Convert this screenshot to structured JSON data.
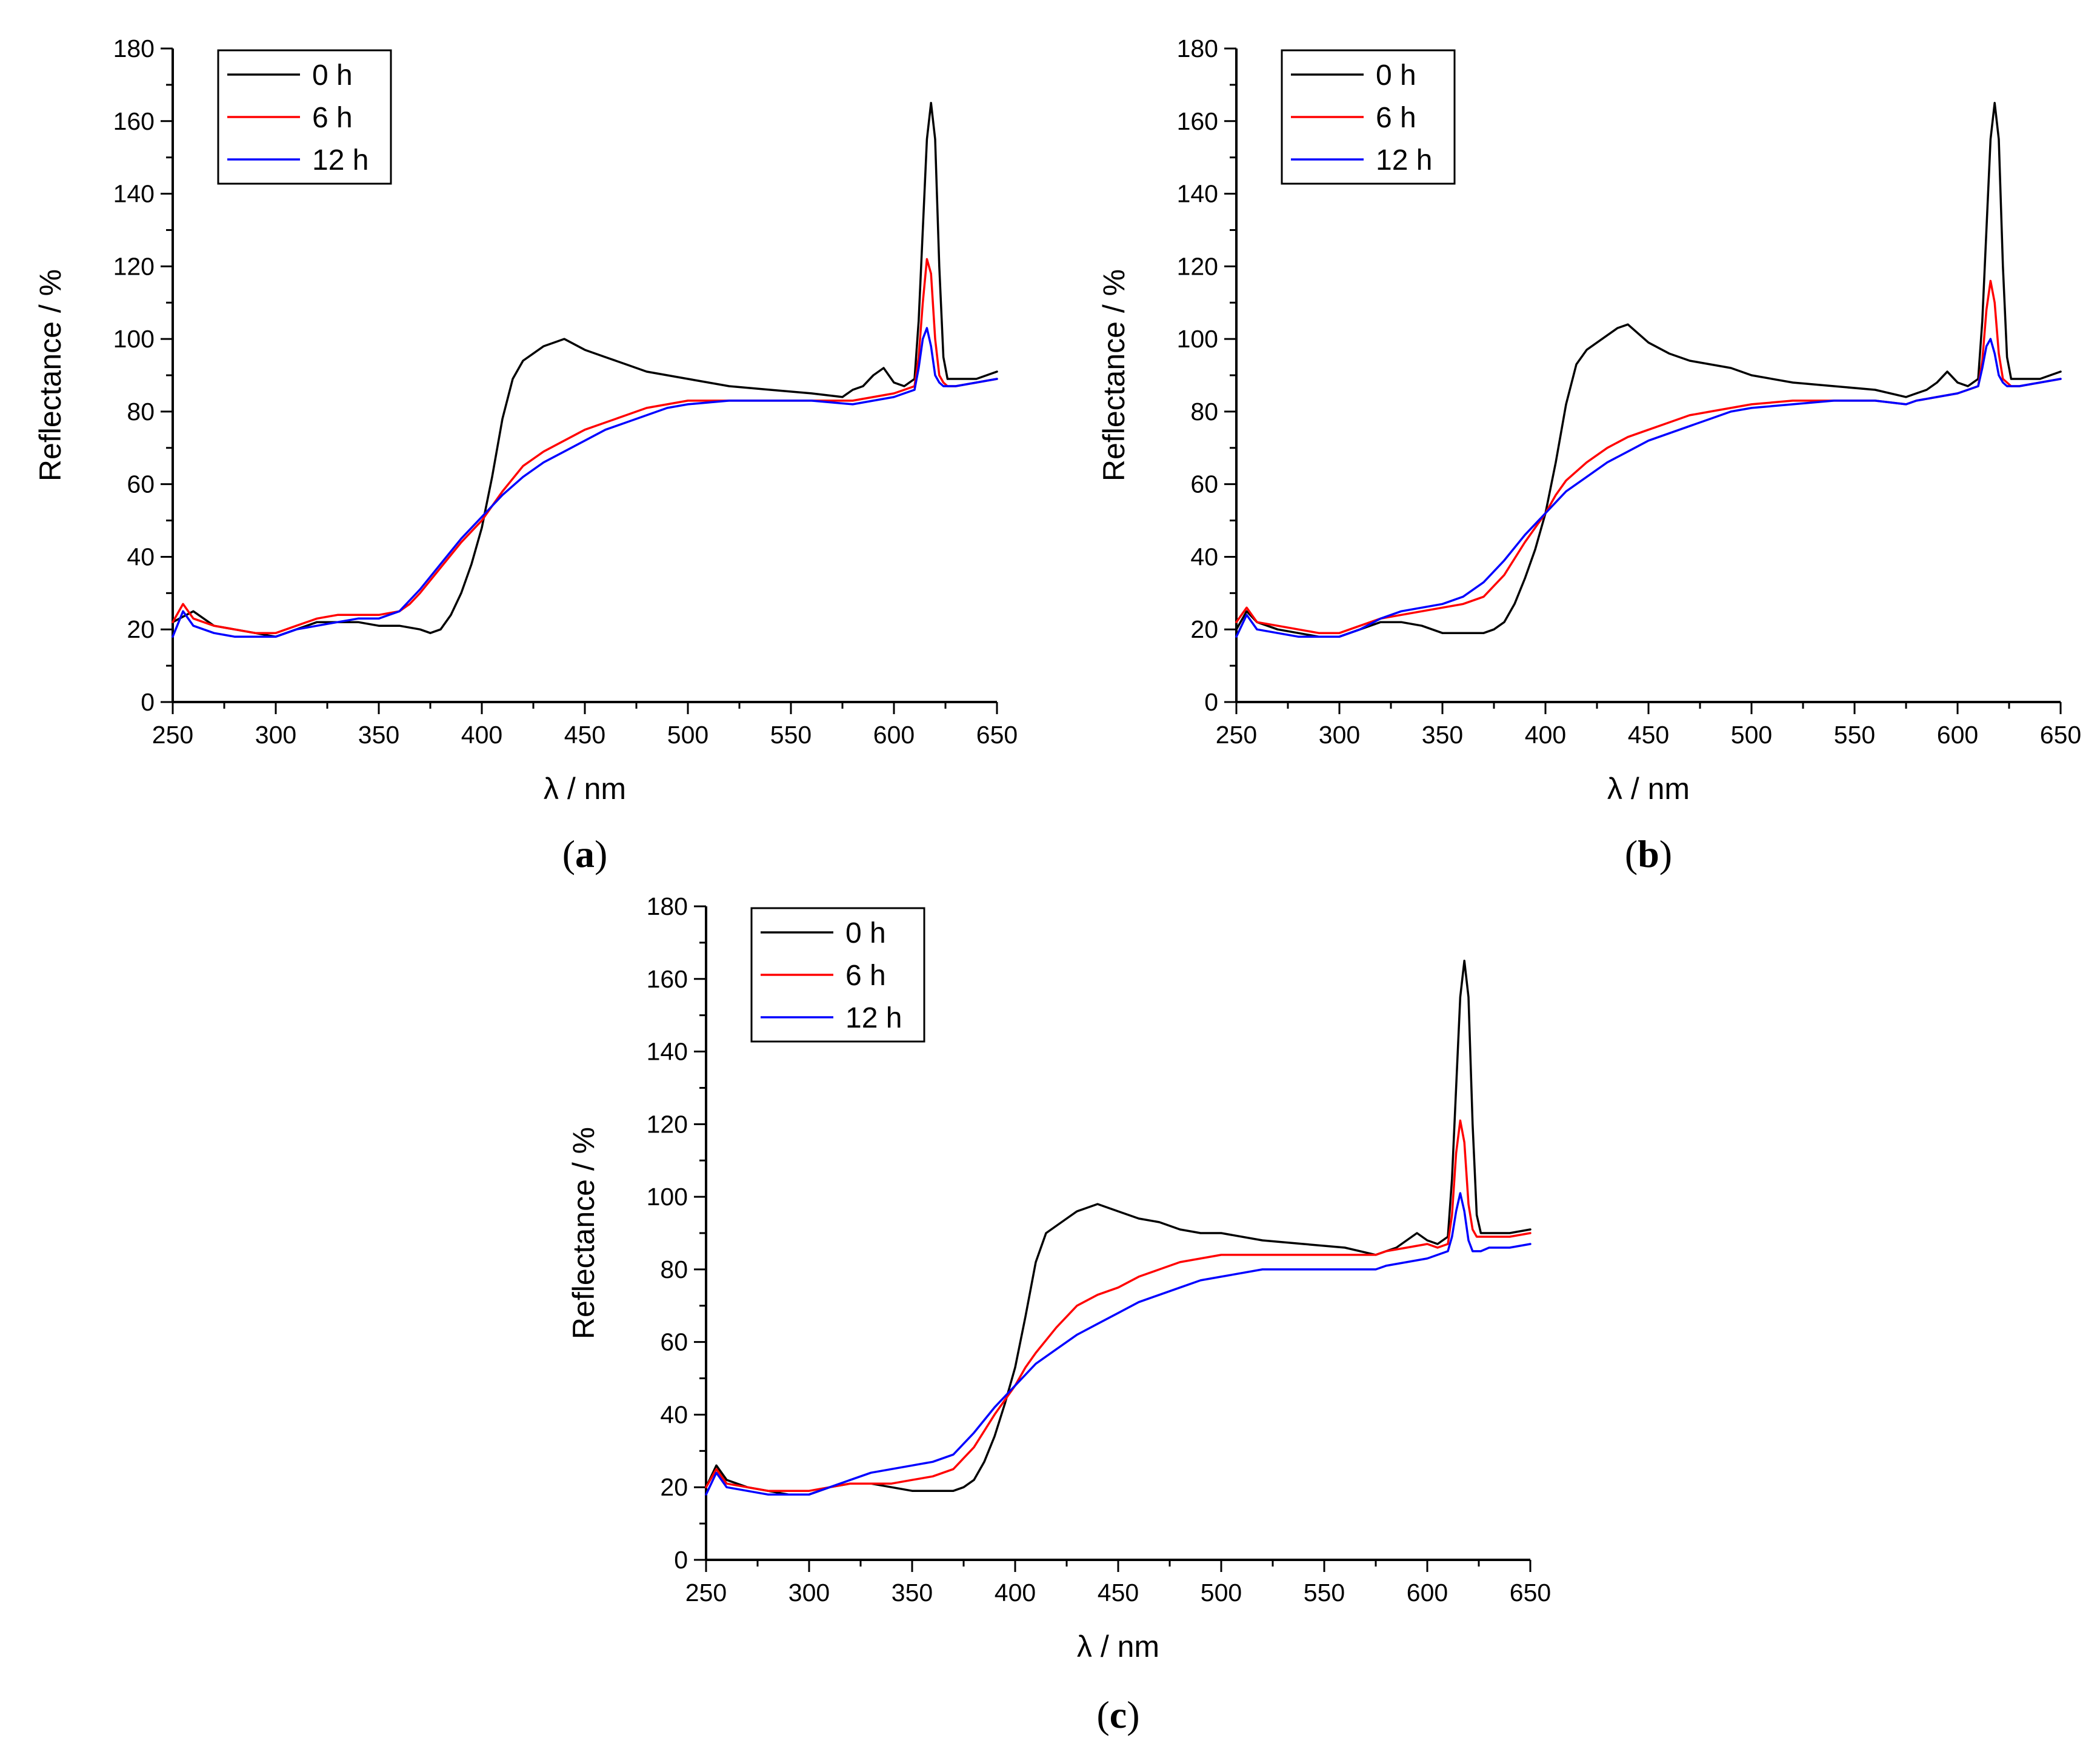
{
  "chart_data": [
    {
      "type": "line",
      "panel": "a",
      "caption_open": "(",
      "caption_letter": "a",
      "caption_close": ")",
      "xlabel": "λ / nm",
      "ylabel": "Reflectance / %",
      "xlim": [
        250,
        650
      ],
      "ylim": [
        0,
        180
      ],
      "xticks": [
        250,
        300,
        350,
        400,
        450,
        500,
        550,
        600,
        650
      ],
      "yticks": [
        0,
        20,
        40,
        60,
        80,
        100,
        120,
        140,
        160,
        180
      ],
      "legend_position": "top-left",
      "series": [
        {
          "name": "0 h",
          "color": "#000000",
          "x": [
            250,
            260,
            270,
            280,
            290,
            300,
            310,
            320,
            330,
            340,
            350,
            360,
            370,
            375,
            380,
            385,
            390,
            395,
            400,
            405,
            410,
            415,
            420,
            425,
            430,
            435,
            440,
            450,
            460,
            470,
            480,
            490,
            500,
            520,
            540,
            560,
            575,
            580,
            585,
            590,
            595,
            600,
            605,
            610,
            612,
            614,
            616,
            618,
            620,
            622,
            624,
            626,
            630,
            640,
            650
          ],
          "y": [
            22,
            25,
            21,
            20,
            19,
            18,
            20,
            22,
            22,
            22,
            21,
            21,
            20,
            19,
            20,
            24,
            30,
            38,
            48,
            62,
            78,
            89,
            94,
            96,
            98,
            99,
            100,
            97,
            95,
            93,
            91,
            90,
            89,
            87,
            86,
            85,
            84,
            86,
            87,
            90,
            92,
            88,
            87,
            89,
            105,
            130,
            155,
            165,
            155,
            120,
            95,
            89,
            89,
            89,
            91
          ]
        },
        {
          "name": "6 h",
          "color": "#ff0000",
          "x": [
            250,
            255,
            260,
            270,
            280,
            290,
            300,
            310,
            320,
            330,
            340,
            350,
            360,
            365,
            370,
            380,
            390,
            400,
            405,
            410,
            420,
            430,
            440,
            450,
            460,
            470,
            480,
            490,
            500,
            520,
            540,
            560,
            580,
            590,
            600,
            605,
            610,
            612,
            614,
            616,
            618,
            620,
            622,
            624,
            626,
            630,
            640,
            650
          ],
          "y": [
            22,
            27,
            23,
            21,
            20,
            19,
            19,
            21,
            23,
            24,
            24,
            24,
            25,
            27,
            30,
            37,
            44,
            50,
            54,
            58,
            65,
            69,
            72,
            75,
            77,
            79,
            81,
            82,
            83,
            83,
            83,
            83,
            83,
            84,
            85,
            86,
            87,
            95,
            110,
            122,
            118,
            100,
            90,
            88,
            87,
            87,
            88,
            89
          ]
        },
        {
          "name": "12 h",
          "color": "#0000ff",
          "x": [
            250,
            255,
            260,
            270,
            280,
            290,
            300,
            310,
            320,
            330,
            340,
            350,
            360,
            365,
            370,
            380,
            390,
            400,
            405,
            410,
            420,
            430,
            440,
            450,
            460,
            470,
            480,
            490,
            500,
            520,
            540,
            560,
            580,
            590,
            600,
            605,
            610,
            612,
            614,
            616,
            618,
            620,
            622,
            624,
            626,
            630,
            640,
            650
          ],
          "y": [
            18,
            25,
            21,
            19,
            18,
            18,
            18,
            20,
            21,
            22,
            23,
            23,
            25,
            28,
            31,
            38,
            45,
            51,
            54,
            57,
            62,
            66,
            69,
            72,
            75,
            77,
            79,
            81,
            82,
            83,
            83,
            83,
            82,
            83,
            84,
            85,
            86,
            92,
            100,
            103,
            98,
            90,
            88,
            87,
            87,
            87,
            88,
            89
          ]
        }
      ]
    },
    {
      "type": "line",
      "panel": "b",
      "caption_open": "(",
      "caption_letter": "b",
      "caption_close": ")",
      "xlabel": "λ / nm",
      "ylabel": "Reflectance / %",
      "xlim": [
        250,
        650
      ],
      "ylim": [
        0,
        180
      ],
      "xticks": [
        250,
        300,
        350,
        400,
        450,
        500,
        550,
        600,
        650
      ],
      "yticks": [
        0,
        20,
        40,
        60,
        80,
        100,
        120,
        140,
        160,
        180
      ],
      "legend_position": "top-left",
      "series": [
        {
          "name": "0 h",
          "color": "#000000",
          "x": [
            250,
            255,
            260,
            270,
            280,
            290,
            300,
            310,
            320,
            330,
            340,
            350,
            360,
            370,
            375,
            380,
            385,
            390,
            395,
            400,
            405,
            410,
            415,
            420,
            425,
            430,
            435,
            440,
            450,
            460,
            470,
            480,
            490,
            500,
            520,
            540,
            560,
            575,
            580,
            585,
            590,
            595,
            600,
            605,
            610,
            612,
            614,
            616,
            618,
            620,
            622,
            624,
            626,
            630,
            640,
            650
          ],
          "y": [
            20,
            25,
            22,
            20,
            19,
            18,
            18,
            20,
            22,
            22,
            21,
            19,
            19,
            19,
            20,
            22,
            27,
            34,
            42,
            52,
            66,
            82,
            93,
            97,
            99,
            101,
            103,
            104,
            99,
            96,
            94,
            93,
            92,
            90,
            88,
            87,
            86,
            84,
            85,
            86,
            88,
            91,
            88,
            87,
            89,
            105,
            130,
            155,
            165,
            155,
            120,
            95,
            89,
            89,
            89,
            91
          ]
        },
        {
          "name": "6 h",
          "color": "#ff0000",
          "x": [
            250,
            255,
            260,
            270,
            280,
            290,
            300,
            310,
            320,
            330,
            340,
            350,
            360,
            370,
            380,
            390,
            400,
            405,
            410,
            420,
            430,
            440,
            450,
            460,
            470,
            480,
            490,
            500,
            520,
            540,
            560,
            575,
            580,
            590,
            600,
            605,
            610,
            612,
            614,
            616,
            618,
            620,
            622,
            624,
            626,
            630,
            640,
            650
          ],
          "y": [
            22,
            26,
            22,
            21,
            20,
            19,
            19,
            21,
            23,
            24,
            25,
            26,
            27,
            29,
            35,
            44,
            52,
            57,
            61,
            66,
            70,
            73,
            75,
            77,
            79,
            80,
            81,
            82,
            83,
            83,
            83,
            82,
            83,
            84,
            85,
            86,
            87,
            94,
            108,
            116,
            110,
            96,
            89,
            88,
            87,
            87,
            88,
            89
          ]
        },
        {
          "name": "12 h",
          "color": "#0000ff",
          "x": [
            250,
            255,
            260,
            270,
            280,
            290,
            300,
            310,
            320,
            330,
            340,
            350,
            360,
            370,
            380,
            390,
            400,
            405,
            410,
            420,
            430,
            440,
            450,
            460,
            470,
            480,
            490,
            500,
            520,
            540,
            560,
            575,
            580,
            590,
            600,
            605,
            610,
            612,
            614,
            616,
            618,
            620,
            622,
            624,
            626,
            630,
            640,
            650
          ],
          "y": [
            18,
            24,
            20,
            19,
            18,
            18,
            18,
            20,
            23,
            25,
            26,
            27,
            29,
            33,
            39,
            46,
            52,
            55,
            58,
            62,
            66,
            69,
            72,
            74,
            76,
            78,
            80,
            81,
            82,
            83,
            83,
            82,
            83,
            84,
            85,
            86,
            87,
            92,
            98,
            100,
            96,
            90,
            88,
            87,
            87,
            87,
            88,
            89
          ]
        }
      ]
    },
    {
      "type": "line",
      "panel": "c",
      "caption_open": "(",
      "caption_letter": "c",
      "caption_close": ")",
      "xlabel": "λ / nm",
      "ylabel": "Reflectance / %",
      "xlim": [
        250,
        650
      ],
      "ylim": [
        0,
        180
      ],
      "xticks": [
        250,
        300,
        350,
        400,
        450,
        500,
        550,
        600,
        650
      ],
      "yticks": [
        0,
        20,
        40,
        60,
        80,
        100,
        120,
        140,
        160,
        180
      ],
      "legend_position": "top-left",
      "series": [
        {
          "name": "0 h",
          "color": "#000000",
          "x": [
            250,
            255,
            260,
            270,
            280,
            290,
            300,
            310,
            320,
            330,
            340,
            350,
            360,
            370,
            375,
            380,
            385,
            390,
            395,
            400,
            405,
            410,
            415,
            420,
            425,
            430,
            435,
            440,
            450,
            460,
            470,
            480,
            490,
            500,
            520,
            540,
            560,
            575,
            580,
            585,
            590,
            595,
            600,
            605,
            610,
            612,
            614,
            616,
            618,
            620,
            622,
            624,
            626,
            630,
            640,
            650
          ],
          "y": [
            20,
            26,
            22,
            20,
            19,
            18,
            18,
            20,
            21,
            21,
            20,
            19,
            19,
            19,
            20,
            22,
            27,
            34,
            43,
            53,
            67,
            82,
            90,
            92,
            94,
            96,
            97,
            98,
            96,
            94,
            93,
            91,
            90,
            90,
            88,
            87,
            86,
            84,
            85,
            86,
            88,
            90,
            88,
            87,
            89,
            105,
            130,
            155,
            165,
            155,
            120,
            95,
            90,
            90,
            90,
            91
          ]
        },
        {
          "name": "6 h",
          "color": "#ff0000",
          "x": [
            250,
            255,
            260,
            270,
            280,
            290,
            300,
            310,
            320,
            330,
            340,
            350,
            360,
            370,
            380,
            390,
            400,
            405,
            410,
            420,
            430,
            440,
            450,
            460,
            470,
            480,
            490,
            500,
            520,
            540,
            560,
            575,
            580,
            590,
            600,
            605,
            610,
            612,
            614,
            616,
            618,
            620,
            622,
            624,
            626,
            630,
            640,
            650
          ],
          "y": [
            20,
            25,
            21,
            20,
            19,
            19,
            19,
            20,
            21,
            21,
            21,
            22,
            23,
            25,
            31,
            40,
            48,
            53,
            57,
            64,
            70,
            73,
            75,
            78,
            80,
            82,
            83,
            84,
            84,
            84,
            84,
            84,
            85,
            86,
            87,
            86,
            87,
            95,
            112,
            121,
            115,
            98,
            91,
            89,
            89,
            89,
            89,
            90
          ]
        },
        {
          "name": "12 h",
          "color": "#0000ff",
          "x": [
            250,
            255,
            260,
            270,
            280,
            290,
            300,
            310,
            320,
            330,
            340,
            350,
            360,
            370,
            380,
            390,
            400,
            405,
            410,
            420,
            430,
            440,
            450,
            460,
            470,
            480,
            490,
            500,
            520,
            540,
            560,
            575,
            580,
            590,
            600,
            605,
            610,
            612,
            614,
            616,
            618,
            620,
            622,
            624,
            626,
            630,
            640,
            650
          ],
          "y": [
            18,
            24,
            20,
            19,
            18,
            18,
            18,
            20,
            22,
            24,
            25,
            26,
            27,
            29,
            35,
            42,
            48,
            51,
            54,
            58,
            62,
            65,
            68,
            71,
            73,
            75,
            77,
            78,
            80,
            80,
            80,
            80,
            81,
            82,
            83,
            84,
            85,
            89,
            96,
            101,
            96,
            88,
            85,
            85,
            85,
            86,
            86,
            87
          ]
        }
      ]
    }
  ]
}
